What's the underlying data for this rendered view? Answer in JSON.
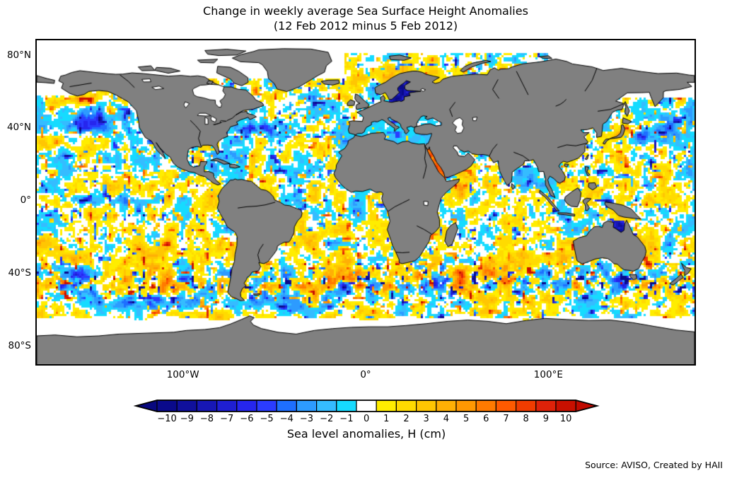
{
  "figure": {
    "title_line1": "Change in weekly average Sea Surface Height Anomalies",
    "title_line2": "(12 Feb 2012 minus 5 Feb 2012)",
    "source_note": "Source: AVISO, Created by HAII",
    "background_color": "#ffffff"
  },
  "map": {
    "y_tick_labels": [
      "80°N",
      "40°N",
      "0°",
      "40°S",
      "80°S"
    ],
    "y_tick_lats": [
      80,
      40,
      0,
      -40,
      -80
    ],
    "x_tick_labels": [
      "100°W",
      "0°",
      "100°E"
    ],
    "x_tick_lons": [
      -100,
      0,
      100
    ],
    "land_color": "#808080",
    "coastline_color": "#000000",
    "no_data_color": "#ffffff",
    "border_color": "#000000"
  },
  "colorbar": {
    "label": "Sea level anomalies, H (cm)",
    "units": "cm",
    "tick_labels": [
      "−10",
      "−9",
      "−8",
      "−7",
      "−6",
      "−5",
      "−4",
      "−3",
      "−2",
      "−1",
      "0",
      "1",
      "2",
      "3",
      "4",
      "5",
      "6",
      "7",
      "8",
      "9",
      "10"
    ],
    "tick_values": [
      -10,
      -9,
      -8,
      -7,
      -6,
      -5,
      -4,
      -3,
      -2,
      -1,
      0,
      1,
      2,
      3,
      4,
      5,
      6,
      7,
      8,
      9,
      10
    ],
    "cell_colors": [
      "#0a0a8b",
      "#10109c",
      "#1717b5",
      "#1f1fd3",
      "#2626ee",
      "#2b3cff",
      "#1e6fff",
      "#2d9bff",
      "#35bcff",
      "#16dbff",
      "#ffffff",
      "#ffed00",
      "#ffdb00",
      "#ffc602",
      "#ffb005",
      "#ff9802",
      "#ff7a00",
      "#ff5a00",
      "#f03c00",
      "#de2209",
      "#c81000"
    ],
    "extend_left_color": "#08087f",
    "extend_right_color": "#c00a00"
  },
  "chart_data": {
    "type": "heatmap",
    "title": "Change in weekly average Sea Surface Height Anomalies",
    "subtitle": "(12 Feb 2012 minus 5 Feb 2012)",
    "projection": "equirectangular world map",
    "lon_range": [
      -180,
      180
    ],
    "lat_range": [
      -90,
      88
    ],
    "x_tick_labels": [
      "100°W",
      "0°",
      "100°E"
    ],
    "y_tick_labels": [
      "80°N",
      "40°N",
      "0°",
      "40°S",
      "80°S"
    ],
    "value_units": "cm",
    "value_range_shown": [
      -10,
      10
    ],
    "colorbar_label": "Sea level anomalies, H (cm)",
    "colorbar_ticks": [
      -10,
      -9,
      -8,
      -7,
      -6,
      -5,
      -4,
      -3,
      -2,
      -1,
      0,
      1,
      2,
      3,
      4,
      5,
      6,
      7,
      8,
      9,
      10
    ],
    "colorbar_extend": "both",
    "legend_position": "bottom",
    "grid": false,
    "land_rendering": "solid gray with black coastlines, white where no altimetry data (polar ice, Hudson Bay, high Arctic)",
    "notable_regions": [
      {
        "region": "Baltic Sea",
        "approx_anomaly_cm": -9
      },
      {
        "region": "Red Sea",
        "approx_anomaly_cm": 7
      },
      {
        "region": "Gulf of Carpentaria (N Australia)",
        "approx_anomaly_cm": -8
      },
      {
        "region": "Northeast Pacific / Gulf of Alaska",
        "approx_anomaly_cm": -5
      },
      {
        "region": "Gulf Stream band (W North Atlantic ~40N)",
        "approx_anomaly_cm": "strong ±8 eddy speckle"
      },
      {
        "region": "Agulhas region SE of South Africa",
        "approx_anomaly_cm": "strong ±8 eddy speckle"
      },
      {
        "region": "South Pacific ~55–60S",
        "approx_anomaly_cm": -5
      },
      {
        "region": "Southern subtropics 20–45S",
        "approx_anomaly_cm": "+1 to +2 (yellow band)"
      },
      {
        "region": "Most open ocean",
        "approx_anomaly_cm": "−2 to +2 mottled white/yellow/cyan"
      }
    ]
  }
}
